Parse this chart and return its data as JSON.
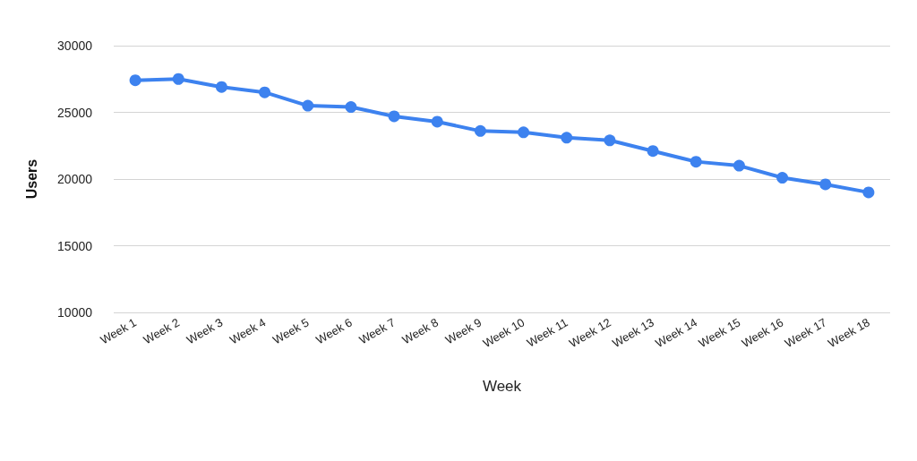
{
  "chart_data": {
    "type": "line",
    "xlabel": "Week",
    "ylabel": "Users",
    "categories": [
      "Week 1",
      "Week 2",
      "Week 3",
      "Week 4",
      "Week 5",
      "Week 6",
      "Week 7",
      "Week 8",
      "Week 9",
      "Week 10",
      "Week 11",
      "Week 12",
      "Week 13",
      "Week 14",
      "Week 15",
      "Week 16",
      "Week 17",
      "Week 18"
    ],
    "series": [
      {
        "color": "#3d82ef",
        "values": [
          27400,
          27500,
          26900,
          26500,
          25500,
          25400,
          24700,
          24300,
          23600,
          23500,
          23100,
          22900,
          22100,
          21300,
          21000,
          20100,
          19600,
          19000
        ]
      }
    ],
    "ylim": [
      10000,
      30000
    ],
    "yticks": [
      10000,
      15000,
      20000,
      25000,
      30000
    ],
    "grid": "y",
    "marker": "circle",
    "line_style": "solid"
  }
}
